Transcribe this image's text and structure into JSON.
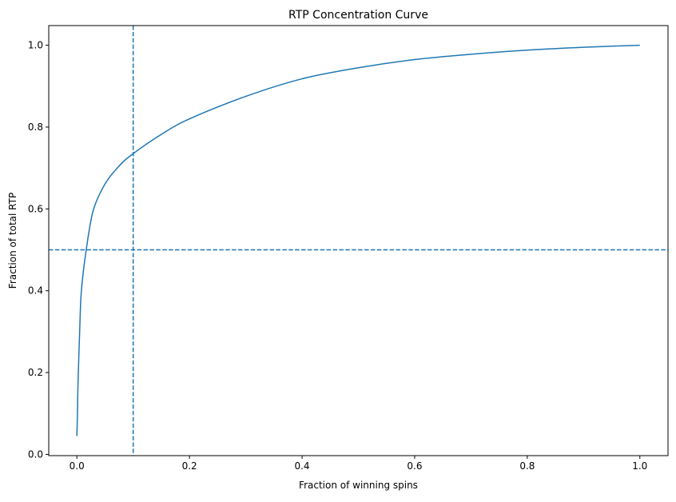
{
  "chart_data": {
    "type": "line",
    "title": "RTP Concentration Curve",
    "xlabel": "Fraction of winning spins",
    "ylabel": "Fraction of total RTP",
    "xlim": [
      -0.05,
      1.05
    ],
    "ylim": [
      -0.003,
      1.048
    ],
    "xticks": [
      0.0,
      0.2,
      0.4,
      0.6,
      0.8,
      1.0
    ],
    "xtick_labels": [
      "0.0",
      "0.2",
      "0.4",
      "0.6",
      "0.8",
      "1.0"
    ],
    "yticks": [
      0.0,
      0.2,
      0.4,
      0.6,
      0.8,
      1.0
    ],
    "ytick_labels": [
      "0.0",
      "0.2",
      "0.4",
      "0.6",
      "0.8",
      "1.0"
    ],
    "grid": false,
    "series": [
      {
        "color": "#1f77b4",
        "x": [
          0.0,
          0.001,
          0.002,
          0.005,
          0.008,
          0.0166,
          0.029,
          0.05,
          0.075,
          0.1,
          0.15,
          0.2,
          0.3,
          0.4,
          0.5,
          0.6,
          0.7,
          0.8,
          0.9,
          1.0
        ],
        "y": [
          0.045,
          0.1,
          0.173,
          0.304,
          0.4,
          0.5,
          0.596,
          0.661,
          0.705,
          0.735,
          0.782,
          0.82,
          0.875,
          0.918,
          0.945,
          0.965,
          0.978,
          0.988,
          0.995,
          1.0
        ]
      }
    ],
    "reference_lines": [
      {
        "orientation": "vertical",
        "value": 0.1,
        "style": "dashed",
        "color": "#1f77b4"
      },
      {
        "orientation": "horizontal",
        "value": 0.5,
        "style": "dashed",
        "color": "#1f77b4"
      }
    ]
  }
}
